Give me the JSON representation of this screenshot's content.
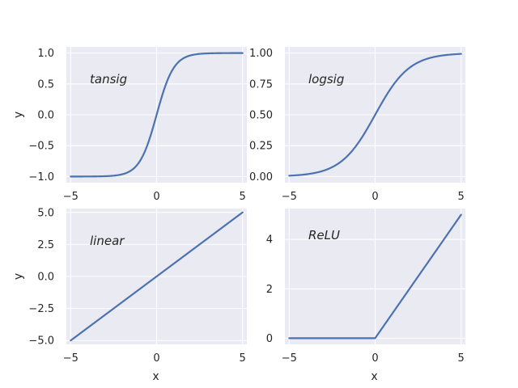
{
  "chart_data": [
    {
      "type": "line",
      "annotation": "tansig",
      "function": "tanh",
      "xlabel": "",
      "ylabel": "y",
      "xlim": [
        -5.25,
        5.25
      ],
      "ylim": [
        -1.1,
        1.1
      ],
      "xticks": [
        -5,
        0,
        5
      ],
      "xtick_labels": [
        "−5",
        "0",
        "5"
      ],
      "yticks": [
        -1.0,
        -0.5,
        0.0,
        0.5,
        1.0
      ],
      "ytick_labels": [
        "−1.0",
        "−0.5",
        "0.0",
        "0.5",
        "1.0"
      ],
      "grid": true,
      "series": [
        {
          "x": [
            -5,
            -4,
            -3,
            -2,
            -1.5,
            -1,
            -0.5,
            0,
            0.5,
            1,
            1.5,
            2,
            3,
            4,
            5
          ],
          "y": [
            -0.9999,
            -0.9993,
            -0.9951,
            -0.964,
            -0.9051,
            -0.7616,
            -0.4621,
            0,
            0.4621,
            0.7616,
            0.9051,
            0.964,
            0.9951,
            0.9993,
            0.9999
          ]
        }
      ]
    },
    {
      "type": "line",
      "annotation": "logsig",
      "function": "sigmoid",
      "xlabel": "",
      "ylabel": "",
      "xlim": [
        -5.25,
        5.25
      ],
      "ylim": [
        -0.05,
        1.05
      ],
      "xticks": [
        -5,
        0,
        5
      ],
      "xtick_labels": [
        "−5",
        "0",
        "5"
      ],
      "yticks": [
        0.0,
        0.25,
        0.5,
        0.75,
        1.0
      ],
      "ytick_labels": [
        "0.00",
        "0.25",
        "0.50",
        "0.75",
        "1.00"
      ],
      "grid": true,
      "series": [
        {
          "x": [
            -5,
            -4,
            -3,
            -2,
            -1,
            0,
            1,
            2,
            3,
            4,
            5
          ],
          "y": [
            0.0067,
            0.018,
            0.0474,
            0.1192,
            0.2689,
            0.5,
            0.7311,
            0.8808,
            0.9526,
            0.982,
            0.9933
          ]
        }
      ]
    },
    {
      "type": "line",
      "annotation": "linear",
      "function": "linear",
      "xlabel": "x",
      "ylabel": "y",
      "xlim": [
        -5.25,
        5.25
      ],
      "ylim": [
        -5.3,
        5.3
      ],
      "xticks": [
        -5,
        0,
        5
      ],
      "xtick_labels": [
        "−5",
        "0",
        "5"
      ],
      "yticks": [
        -5.0,
        -2.5,
        0.0,
        2.5,
        5.0
      ],
      "ytick_labels": [
        "−5.0",
        "−2.5",
        "0.0",
        "2.5",
        "5.0"
      ],
      "grid": true,
      "series": [
        {
          "x": [
            -5,
            5
          ],
          "y": [
            -5,
            5
          ]
        }
      ]
    },
    {
      "type": "line",
      "annotation": "ReLU",
      "function": "relu",
      "xlabel": "x",
      "ylabel": "",
      "xlim": [
        -5.25,
        5.25
      ],
      "ylim": [
        -0.25,
        5.25
      ],
      "xticks": [
        -5,
        0,
        5
      ],
      "xtick_labels": [
        "−5",
        "0",
        "5"
      ],
      "yticks": [
        0,
        2,
        4
      ],
      "ytick_labels": [
        "0",
        "2",
        "4"
      ],
      "grid": true,
      "series": [
        {
          "x": [
            -5,
            0,
            5
          ],
          "y": [
            0,
            0,
            5
          ]
        }
      ]
    }
  ],
  "colors": {
    "background": "#eaeaf2",
    "grid": "#ffffff",
    "line": "#4c72b0",
    "text": "#262626"
  }
}
